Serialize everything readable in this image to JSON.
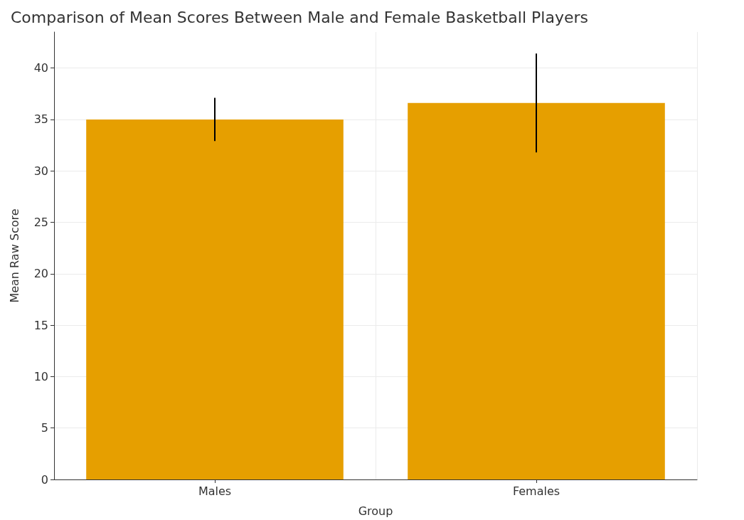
{
  "chart_data": {
    "type": "bar",
    "title": "Comparison of Mean Scores Between Male and Female Basketball Players",
    "xlabel": "Group",
    "ylabel": "Mean Raw Score",
    "categories": [
      "Males",
      "Females"
    ],
    "values": [
      35.0,
      36.6
    ],
    "errors": [
      2.1,
      4.8
    ],
    "color": "#e69f00",
    "ylim": [
      0,
      43.5
    ],
    "yticks": [
      0,
      5,
      10,
      15,
      20,
      25,
      30,
      35,
      40
    ],
    "grid": true
  }
}
